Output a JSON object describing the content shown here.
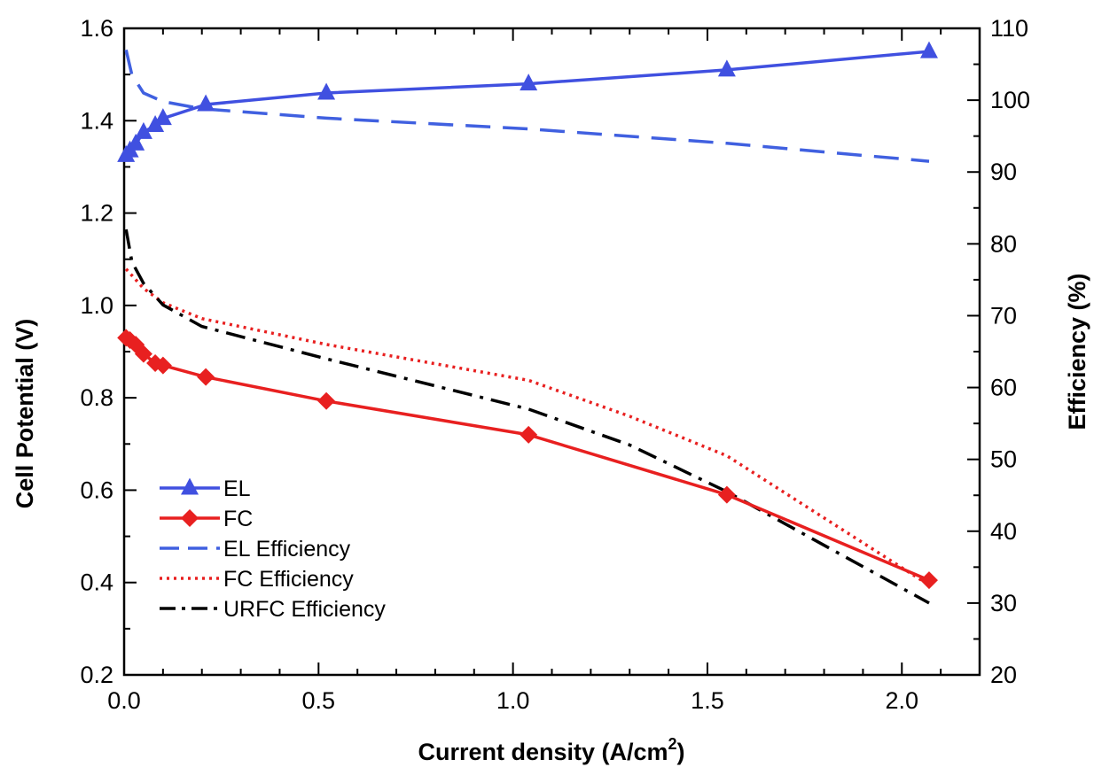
{
  "chart_data": {
    "type": "line",
    "title": "",
    "xlabel": "Current density (A/cm",
    "xlabel_sup": "2",
    "xlabel_suffix": ")",
    "ylabel": "Cell Potential (V)",
    "y2label": "Efficiency (%)",
    "xlim": [
      0.0,
      2.2
    ],
    "ylim": [
      0.2,
      1.6
    ],
    "y2lim": [
      20,
      110
    ],
    "xticks": [
      "0.0",
      "0.5",
      "1.0",
      "1.5",
      "2.0"
    ],
    "yticks": [
      "0.2",
      "0.4",
      "0.6",
      "0.8",
      "1.0",
      "1.2",
      "1.4",
      "1.6"
    ],
    "y2ticks": [
      "20",
      "30",
      "40",
      "50",
      "60",
      "70",
      "80",
      "90",
      "100",
      "110"
    ],
    "grid": false,
    "legend_position": "bottom-left",
    "series": [
      {
        "name": "EL",
        "axis": "left",
        "style": "solid",
        "marker": "triangle",
        "color": "#4050E0",
        "x": [
          0.005,
          0.015,
          0.03,
          0.05,
          0.08,
          0.1,
          0.21,
          0.52,
          1.04,
          1.55,
          2.07
        ],
        "y": [
          1.325,
          1.335,
          1.35,
          1.375,
          1.39,
          1.405,
          1.435,
          1.46,
          1.48,
          1.51,
          1.55
        ]
      },
      {
        "name": "FC",
        "axis": "left",
        "style": "solid",
        "marker": "diamond",
        "color": "#E82020",
        "x": [
          0.005,
          0.015,
          0.03,
          0.05,
          0.08,
          0.1,
          0.21,
          0.52,
          1.04,
          1.55,
          2.07
        ],
        "y": [
          0.93,
          0.925,
          0.915,
          0.895,
          0.875,
          0.87,
          0.845,
          0.793,
          0.72,
          0.59,
          0.405
        ]
      },
      {
        "name": "EL Efficiency",
        "axis": "right",
        "style": "dashed",
        "color": "#4060E0",
        "x": [
          0.005,
          0.02,
          0.05,
          0.1,
          0.2,
          0.52,
          1.04,
          1.55,
          2.07
        ],
        "y": [
          107,
          103.5,
          101,
          99.8,
          98.8,
          97.5,
          96,
          94,
          91.5
        ]
      },
      {
        "name": "FC Efficiency",
        "axis": "right",
        "style": "dotted",
        "color": "#E82020",
        "x": [
          0.005,
          0.05,
          0.1,
          0.2,
          0.52,
          1.04,
          1.3,
          1.55,
          2.07
        ],
        "y": [
          76.5,
          73.8,
          71.8,
          69.6,
          66,
          61,
          56,
          50.5,
          32.5
        ]
      },
      {
        "name": "URFC Efficiency",
        "axis": "right",
        "style": "dashdot",
        "color": "#000000",
        "x": [
          0.005,
          0.02,
          0.05,
          0.1,
          0.2,
          0.52,
          1.04,
          1.3,
          1.55,
          2.07
        ],
        "y": [
          82,
          77.5,
          74.5,
          71.5,
          68.5,
          64,
          57,
          52,
          45.5,
          30
        ]
      }
    ]
  }
}
